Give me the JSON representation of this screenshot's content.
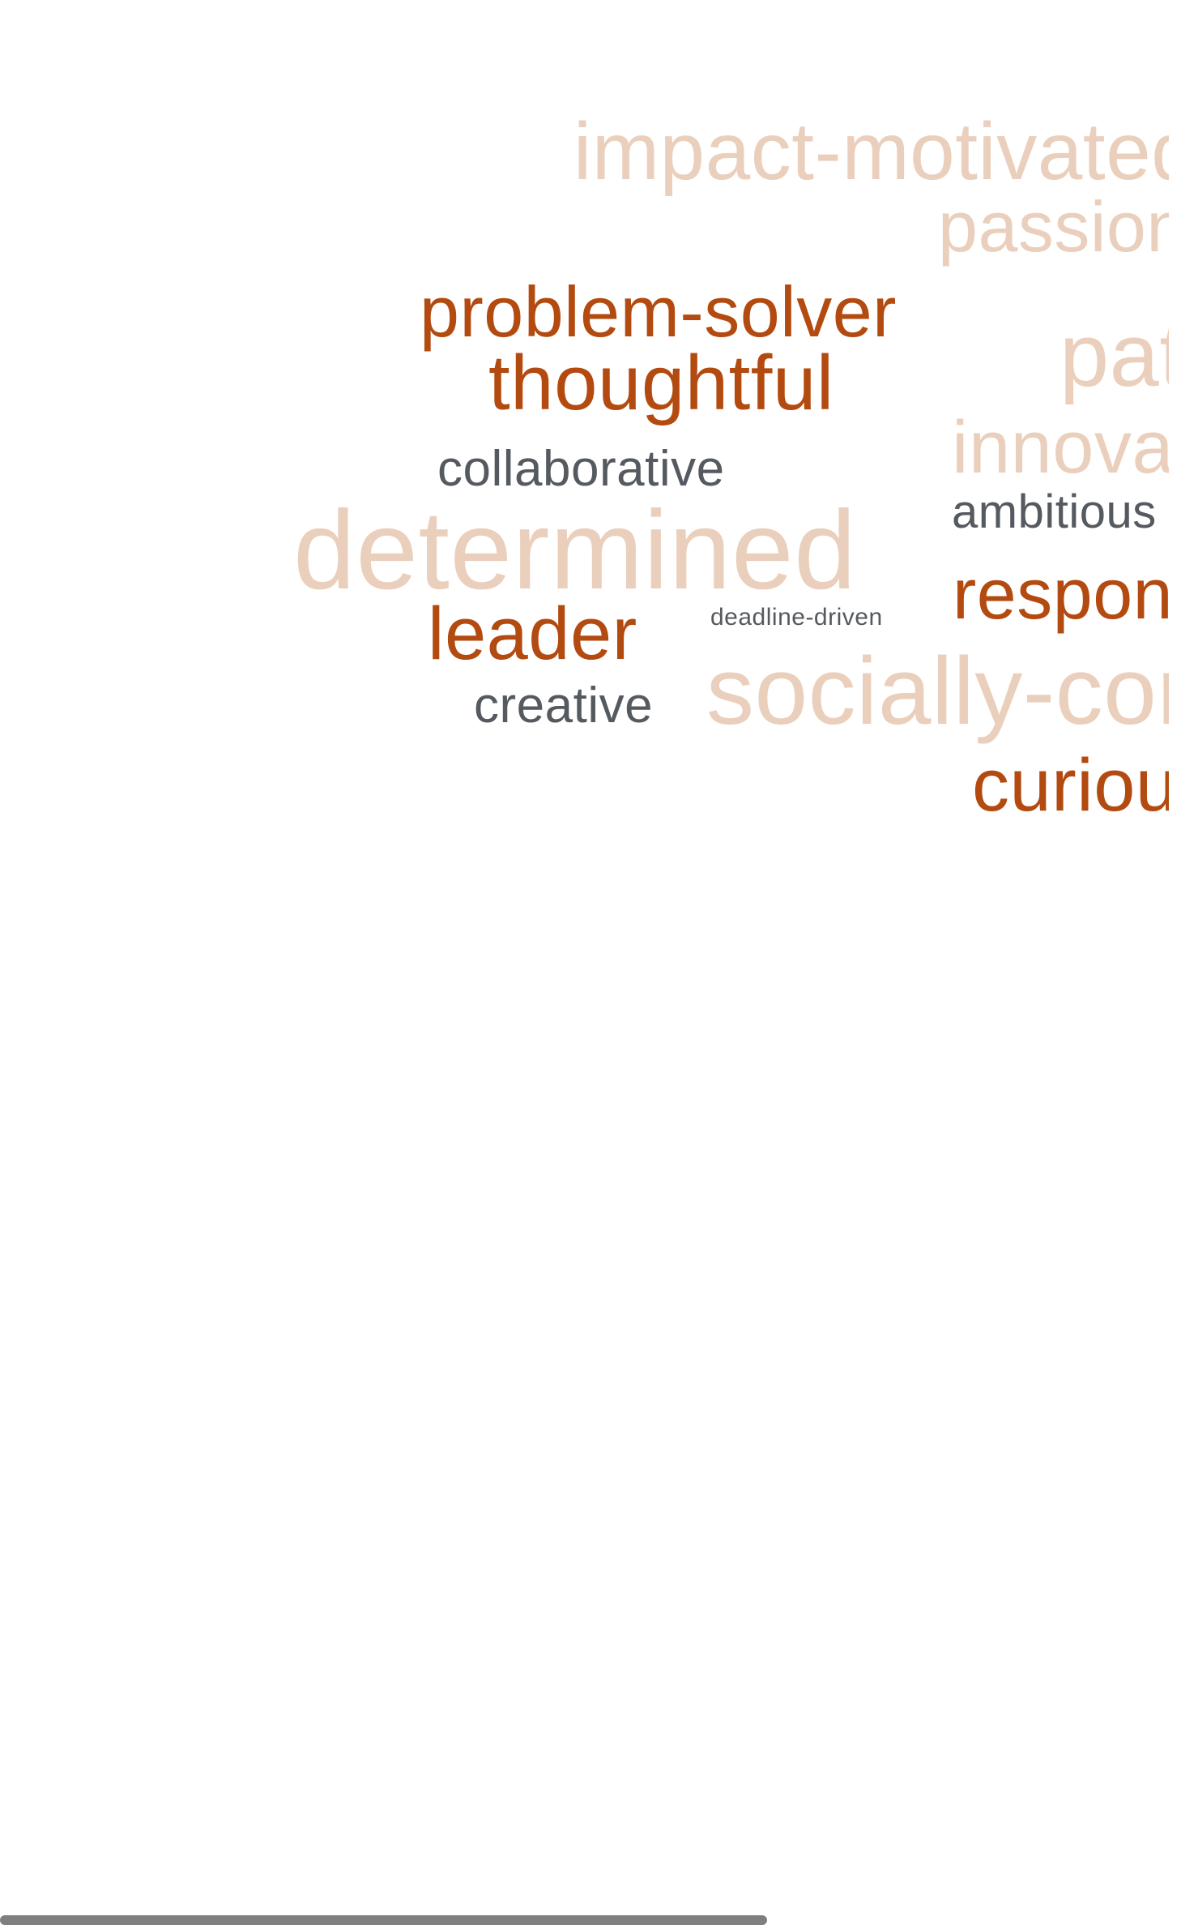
{
  "colors": {
    "primary": "#b34a10",
    "faded": "#eacfbd",
    "neutral": "#555a60",
    "scrollbar": "#7f7f7f"
  },
  "words": [
    {
      "text": "impact-motivated",
      "tone": "faded"
    },
    {
      "text": "passionate",
      "tone": "faded"
    },
    {
      "text": "problem-solver",
      "tone": "primary"
    },
    {
      "text": "patient",
      "tone": "faded"
    },
    {
      "text": "thoughtful",
      "tone": "primary"
    },
    {
      "text": "innovative",
      "tone": "faded"
    },
    {
      "text": "collaborative",
      "tone": "neutral"
    },
    {
      "text": "ambitious",
      "tone": "neutral"
    },
    {
      "text": "determined",
      "tone": "faded"
    },
    {
      "text": "responsible",
      "tone": "primary"
    },
    {
      "text": "leader",
      "tone": "primary"
    },
    {
      "text": "deadline-driven",
      "tone": "neutral"
    },
    {
      "text": "socially-conscious",
      "tone": "faded"
    },
    {
      "text": "creative",
      "tone": "neutral"
    },
    {
      "text": "curious",
      "tone": "primary"
    }
  ]
}
